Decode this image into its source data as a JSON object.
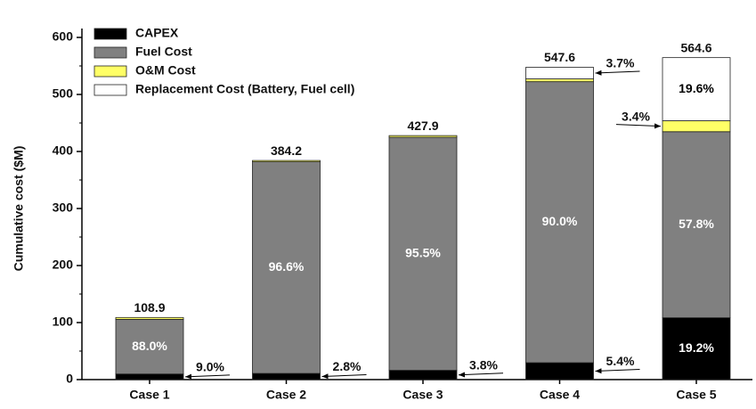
{
  "chart_data": {
    "type": "stacked_bar",
    "y_label": "Cumulative cost ($M)",
    "categories": [
      "Case 1",
      "Case 2",
      "Case 3",
      "Case 4",
      "Case 5"
    ],
    "series": [
      {
        "name": "CAPEX",
        "color": "#000000",
        "values": [
          9.8,
          10.8,
          16.3,
          29.6,
          108.4
        ],
        "share_labels": [
          "9.0%",
          "2.8%",
          "3.8%",
          "5.4%",
          "19.2%"
        ]
      },
      {
        "name": "Fuel Cost",
        "color": "#808080",
        "values": [
          95.8,
          371.1,
          408.6,
          492.8,
          326.3
        ],
        "share_labels": [
          "88.0%",
          "96.6%",
          "95.5%",
          "90.0%",
          "57.8%"
        ]
      },
      {
        "name": "O&M Cost",
        "color": "#ffff66",
        "values": [
          3.3,
          2.3,
          3.0,
          4.9,
          19.2
        ],
        "share_labels": [
          null,
          null,
          null,
          null,
          "3.4%"
        ]
      },
      {
        "name": "Replacement Cost (Battery, Fuel cell)",
        "color": "#ffffff",
        "values": [
          0,
          0,
          0,
          20.3,
          110.7
        ],
        "share_labels": [
          null,
          null,
          null,
          "3.7%",
          "19.6%"
        ]
      }
    ],
    "totals": [
      108.9,
      384.2,
      427.9,
      547.6,
      564.6
    ],
    "ylim": [
      0,
      600
    ],
    "yticks": [
      0,
      100,
      200,
      300,
      400,
      500,
      600
    ]
  }
}
